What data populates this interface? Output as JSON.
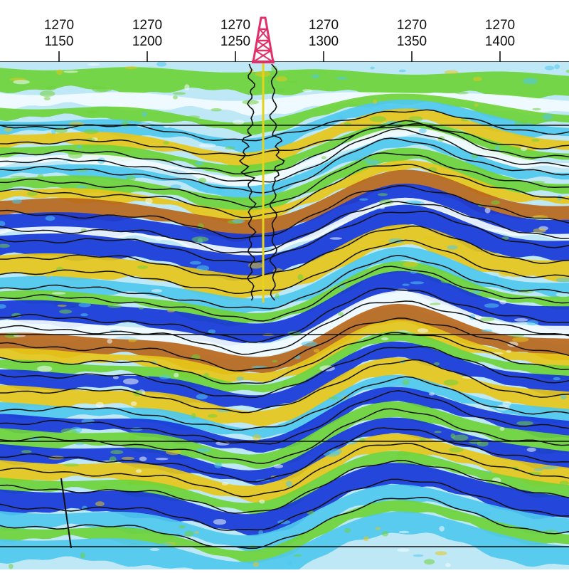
{
  "header": {
    "ticks": [
      {
        "top": "1270",
        "bottom": "1150"
      },
      {
        "top": "1270",
        "bottom": "1200"
      },
      {
        "top": "1270",
        "bottom": "1250"
      },
      {
        "top": "1270",
        "bottom": "1300"
      },
      {
        "top": "1270",
        "bottom": "1350"
      },
      {
        "top": "1270",
        "bottom": "1400"
      }
    ]
  },
  "well": {
    "icon": "drilling-rig-icon",
    "color": "#e0306a"
  },
  "colors": {
    "orange": "#b8661c",
    "yellow": "#e6c619",
    "green": "#6fd23a",
    "cyan": "#4fc8ee",
    "blue": "#1737d8",
    "white": "#f2fbff",
    "horizon": "#111111"
  }
}
